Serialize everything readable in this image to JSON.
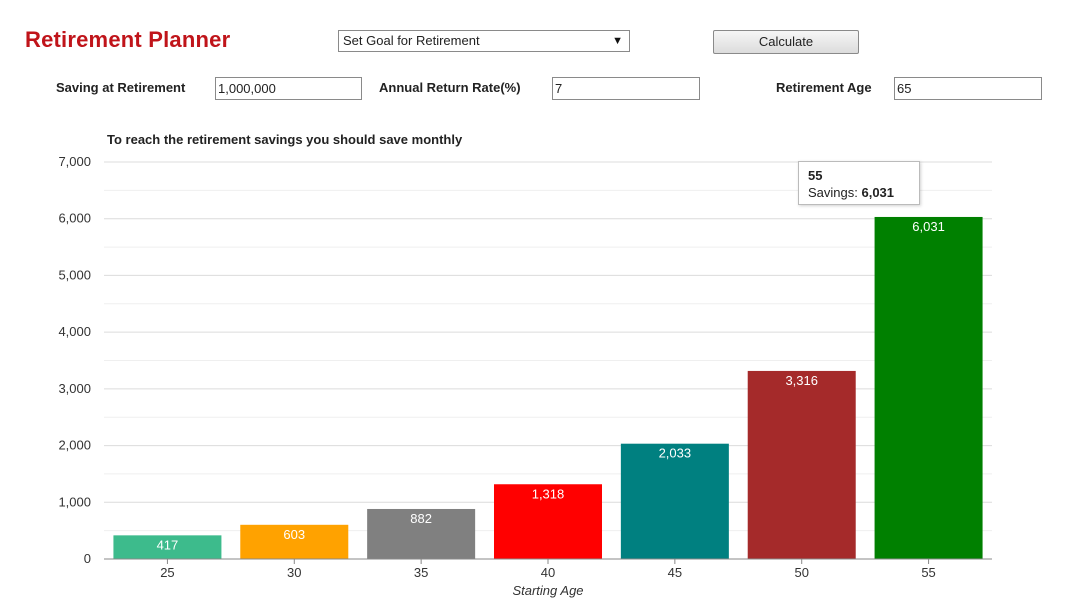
{
  "app": {
    "title": "Retirement Planner"
  },
  "controls": {
    "goal_select": "Set Goal for Retirement",
    "calculate_label": "Calculate"
  },
  "fields": {
    "saving": {
      "label": "Saving at Retirement",
      "value": "1,000,000"
    },
    "rate": {
      "label": "Annual Return Rate(%)",
      "value": "7"
    },
    "age": {
      "label": "Retirement Age",
      "value": "65"
    }
  },
  "tooltip": {
    "title": "55",
    "prefix": "Savings: ",
    "value": "6,031"
  },
  "chart_data": {
    "type": "bar",
    "title": "To reach the retirement savings you should save monthly",
    "xlabel": "Starting Age",
    "ylabel": "",
    "categories": [
      "25",
      "30",
      "35",
      "40",
      "45",
      "50",
      "55"
    ],
    "values": [
      417,
      603,
      882,
      1318,
      2033,
      3316,
      6031
    ],
    "value_labels": [
      "417",
      "603",
      "882",
      "1,318",
      "2,033",
      "3,316",
      "6,031"
    ],
    "colors": [
      "#3dbb8c",
      "#ffa200",
      "#808080",
      "#ff0000",
      "#008080",
      "#a52a2a",
      "#008000"
    ],
    "ylim": [
      0,
      7000
    ],
    "yticks": [
      0,
      1000,
      2000,
      3000,
      4000,
      5000,
      6000,
      7000
    ],
    "ytick_labels": [
      "0",
      "1,000",
      "2,000",
      "3,000",
      "4,000",
      "5,000",
      "6,000",
      "7,000"
    ],
    "grid": true,
    "legend": "none"
  }
}
